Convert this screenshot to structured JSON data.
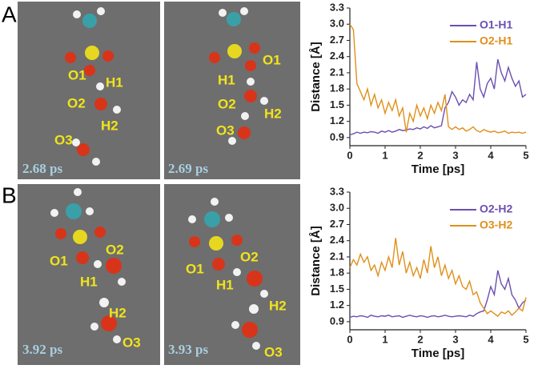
{
  "panel_labels": [
    "A",
    "B"
  ],
  "snapshots": [
    {
      "time": "2.68 ps",
      "labels": [
        "O1",
        "H1",
        "O2",
        "H2",
        "O3"
      ]
    },
    {
      "time": "2.69 ps",
      "labels": [
        "O1",
        "H1",
        "O2",
        "H2",
        "O3"
      ]
    },
    {
      "time": "3.92 ps",
      "labels": [
        "O2",
        "O1",
        "H1",
        "H2",
        "O3"
      ]
    },
    {
      "time": "3.93 ps",
      "labels": [
        "O2",
        "O1",
        "H1",
        "H2",
        "O3"
      ]
    }
  ],
  "chart_data": [
    {
      "type": "line",
      "xlabel": "Time [ps]",
      "ylabel": "Distance [Å]",
      "xlim": [
        0,
        5
      ],
      "ylim": [
        0.75,
        3.3
      ],
      "xticks": [
        0,
        1,
        2,
        3,
        4,
        5
      ],
      "yticks": [
        0.9,
        1.2,
        1.5,
        1.8,
        2.1,
        2.4,
        2.7,
        {
          "value": 3,
          "label": "3.0"
        },
        3.3
      ],
      "legend": "upper right",
      "x": [
        0,
        0.1,
        0.2,
        0.3,
        0.4,
        0.5,
        0.6,
        0.7,
        0.8,
        0.9,
        1,
        1.1,
        1.2,
        1.3,
        1.4,
        1.5,
        1.6,
        1.7,
        1.8,
        1.9,
        2,
        2.1,
        2.2,
        2.3,
        2.4,
        2.5,
        2.6,
        2.7,
        2.8,
        2.9,
        3,
        3.1,
        3.2,
        3.3,
        3.4,
        3.5,
        3.6,
        3.7,
        3.8,
        3.9,
        4,
        4.1,
        4.2,
        4.3,
        4.4,
        4.5,
        4.6,
        4.7,
        4.8,
        4.9,
        5
      ],
      "series": [
        {
          "name": "O1-H1",
          "color": "#6a4fb0",
          "values": [
            0.95,
            0.97,
            1.0,
            0.98,
            1.0,
            0.99,
            1.01,
            1.0,
            0.98,
            1.02,
            1.0,
            1.03,
            1.0,
            1.02,
            1.05,
            1.03,
            1.04,
            1.06,
            1.05,
            1.08,
            1.06,
            1.1,
            1.07,
            1.12,
            1.08,
            1.1,
            1.12,
            1.45,
            1.55,
            1.75,
            1.65,
            1.5,
            1.6,
            1.55,
            1.7,
            1.6,
            2.3,
            1.8,
            1.65,
            1.9,
            2.0,
            1.8,
            2.35,
            2.1,
            1.95,
            2.2,
            2.0,
            1.85,
            1.95,
            1.65,
            1.7
          ]
        },
        {
          "name": "O2-H1",
          "color": "#e08f1a",
          "values": [
            3.0,
            2.9,
            1.9,
            1.75,
            1.6,
            1.8,
            1.5,
            1.7,
            1.45,
            1.6,
            1.35,
            1.55,
            1.4,
            1.6,
            1.3,
            1.45,
            1.0,
            1.35,
            1.2,
            1.5,
            1.3,
            1.45,
            1.25,
            1.5,
            1.35,
            1.55,
            1.4,
            1.7,
            1.1,
            1.05,
            1.1,
            1.05,
            1.08,
            1.02,
            1.05,
            1.1,
            1.03,
            1.0,
            1.05,
            1.02,
            1.0,
            1.02,
            0.99,
            1.0,
            1.02,
            0.98,
            1.0,
            0.99,
            1.0,
            0.98,
            1.0
          ]
        }
      ]
    },
    {
      "type": "line",
      "xlabel": "Time [ps]",
      "ylabel": "Distance [Å]",
      "xlim": [
        0,
        5
      ],
      "ylim": [
        0.75,
        3.3
      ],
      "xticks": [
        0,
        1,
        2,
        3,
        4,
        5
      ],
      "yticks": [
        0.9,
        1.2,
        1.5,
        1.8,
        2.1,
        2.4,
        2.7,
        {
          "value": 3,
          "label": "3.0"
        },
        3.3
      ],
      "legend": "upper right",
      "x": [
        0,
        0.1,
        0.2,
        0.3,
        0.4,
        0.5,
        0.6,
        0.7,
        0.8,
        0.9,
        1,
        1.1,
        1.2,
        1.3,
        1.4,
        1.5,
        1.6,
        1.7,
        1.8,
        1.9,
        2,
        2.1,
        2.2,
        2.3,
        2.4,
        2.5,
        2.6,
        2.7,
        2.8,
        2.9,
        3,
        3.1,
        3.2,
        3.3,
        3.4,
        3.5,
        3.6,
        3.7,
        3.8,
        3.9,
        4,
        4.1,
        4.2,
        4.3,
        4.4,
        4.5,
        4.6,
        4.7,
        4.8,
        4.9,
        5
      ],
      "series": [
        {
          "name": "O2-H2",
          "color": "#6a4fb0",
          "values": [
            0.98,
            1.0,
            0.99,
            1.01,
            1.0,
            0.98,
            1.02,
            1.0,
            0.99,
            1.01,
            1.0,
            1.02,
            0.99,
            1.0,
            1.01,
            0.98,
            1.0,
            1.02,
            1.0,
            0.99,
            1.01,
            1.0,
            0.98,
            1.0,
            1.01,
            0.99,
            1.0,
            1.02,
            1.0,
            0.99,
            1.0,
            1.01,
            1.0,
            0.99,
            1.02,
            1.0,
            1.05,
            1.08,
            1.1,
            1.3,
            1.55,
            1.4,
            1.85,
            1.6,
            1.5,
            1.7,
            1.4,
            1.3,
            1.15,
            1.25,
            1.3
          ]
        },
        {
          "name": "O3-H2",
          "color": "#e08f1a",
          "values": [
            1.9,
            2.05,
            1.95,
            2.15,
            2.0,
            2.1,
            1.85,
            1.95,
            1.75,
            2.0,
            1.85,
            2.1,
            1.9,
            2.45,
            1.95,
            2.2,
            1.8,
            2.0,
            1.75,
            1.9,
            1.7,
            2.05,
            1.8,
            2.3,
            1.9,
            2.1,
            1.75,
            1.95,
            1.7,
            1.85,
            1.6,
            1.75,
            1.55,
            1.5,
            1.65,
            1.4,
            1.45,
            1.25,
            1.15,
            1.05,
            1.1,
            1.05,
            1.0,
            1.08,
            1.05,
            1.1,
            1.02,
            1.08,
            1.15,
            1.1,
            1.35
          ]
        }
      ]
    }
  ]
}
